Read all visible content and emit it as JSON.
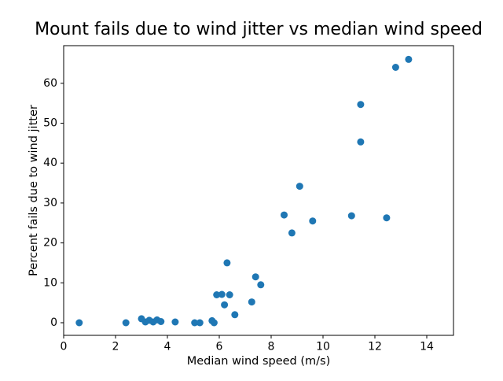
{
  "chart_data": {
    "type": "scatter",
    "title": "Mount fails due to wind jitter vs median wind speed",
    "xlabel": "Median wind speed (m/s)",
    "ylabel": "Percent fails due to wind jitter",
    "xlim": [
      0,
      15.03
    ],
    "ylim": [
      -3.16,
      69.43
    ],
    "xticks": [
      0,
      2,
      4,
      6,
      8,
      10,
      12,
      14
    ],
    "yticks": [
      0,
      10,
      20,
      30,
      40,
      50,
      60
    ],
    "grid": false,
    "legend_position": "none",
    "marker_color": "#1f77b4",
    "marker_radius": 4.5,
    "points": [
      [
        0.6,
        0.0
      ],
      [
        2.4,
        0.0
      ],
      [
        3.0,
        1.0
      ],
      [
        3.15,
        0.2
      ],
      [
        3.3,
        0.6
      ],
      [
        3.45,
        0.2
      ],
      [
        3.6,
        0.7
      ],
      [
        3.75,
        0.3
      ],
      [
        4.3,
        0.2
      ],
      [
        5.05,
        0.0
      ],
      [
        5.25,
        0.0
      ],
      [
        5.72,
        0.5
      ],
      [
        5.8,
        0.0
      ],
      [
        5.9,
        7.0
      ],
      [
        6.1,
        7.1
      ],
      [
        6.2,
        4.5
      ],
      [
        6.3,
        15.0
      ],
      [
        6.4,
        7.0
      ],
      [
        6.6,
        2.0
      ],
      [
        7.25,
        5.2
      ],
      [
        7.4,
        11.5
      ],
      [
        7.6,
        9.5
      ],
      [
        8.5,
        27.0
      ],
      [
        8.8,
        22.5
      ],
      [
        9.1,
        34.2
      ],
      [
        9.6,
        25.5
      ],
      [
        11.1,
        26.8
      ],
      [
        11.45,
        45.3
      ],
      [
        11.45,
        54.7
      ],
      [
        12.45,
        26.3
      ],
      [
        12.8,
        64.0
      ],
      [
        13.3,
        66.0
      ]
    ]
  }
}
